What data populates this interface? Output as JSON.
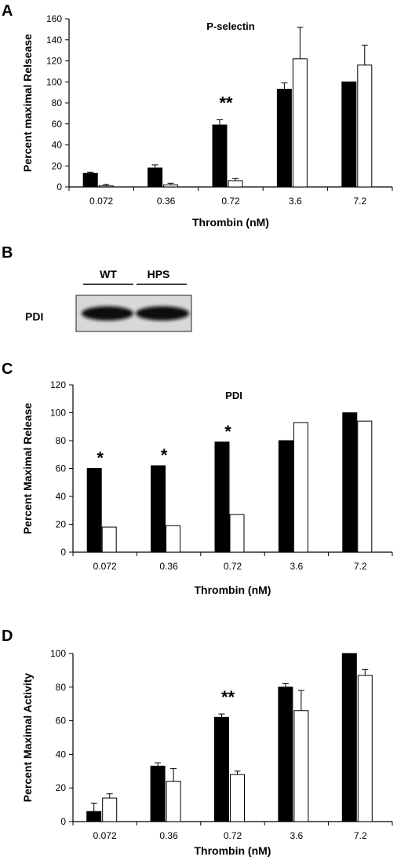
{
  "panels": {
    "a": {
      "letter": "A"
    },
    "b": {
      "letter": "B",
      "blot_label": "PDI",
      "lane_labels": [
        "WT",
        "HPS"
      ]
    },
    "c": {
      "letter": "C"
    },
    "d": {
      "letter": "D"
    }
  },
  "colors": {
    "wt": "#000000",
    "hps": "#ffffff",
    "axis": "#000000"
  },
  "chart_data": [
    {
      "type": "bar",
      "panel": "A",
      "annotation": "P-selectin",
      "categories": [
        "0.072",
        "0.36",
        "0.72",
        "3.6",
        "7.2"
      ],
      "series": [
        {
          "fill": "black",
          "values": [
            13,
            18,
            59,
            93,
            100
          ],
          "errors": [
            1,
            3,
            5,
            6,
            0
          ]
        },
        {
          "fill": "white",
          "values": [
            1,
            2,
            6,
            122,
            116
          ],
          "errors": [
            1.5,
            1.5,
            2,
            30,
            19
          ]
        }
      ],
      "significance": [
        {
          "category_index": 2,
          "label": "**"
        }
      ],
      "xlabel": "Thrombin (nM)",
      "ylabel": "Percent maximal Relsease",
      "ylim": [
        0,
        160
      ],
      "yticks": [
        0,
        20,
        40,
        60,
        80,
        100,
        120,
        140,
        160
      ],
      "ytick_labels": [
        "0",
        "20",
        "40",
        "60",
        "80",
        "100",
        "120",
        "140",
        "160"
      ]
    },
    {
      "type": "bar",
      "panel": "C",
      "annotation": "PDI",
      "categories": [
        "0.072",
        "0.36",
        "0.72",
        "3.6",
        "7.2"
      ],
      "series": [
        {
          "fill": "black",
          "values": [
            60,
            62,
            79,
            80,
            100
          ]
        },
        {
          "fill": "white",
          "values": [
            18,
            19,
            27,
            93,
            94
          ]
        }
      ],
      "significance": [
        {
          "category_index": 0,
          "label": "*"
        },
        {
          "category_index": 1,
          "label": "*"
        },
        {
          "category_index": 2,
          "label": "*"
        }
      ],
      "xlabel": "Thrombin (nM)",
      "ylabel": "Percent Maximal Release",
      "ylim": [
        0,
        120
      ],
      "yticks": [
        0,
        20,
        40,
        60,
        80,
        100,
        120
      ],
      "ytick_labels": [
        "0",
        "20",
        "40",
        "60",
        "80",
        "100",
        "120"
      ]
    },
    {
      "type": "bar",
      "panel": "D",
      "annotation": "",
      "categories": [
        "0.072",
        "0.36",
        "0.72",
        "3.6",
        "7.2"
      ],
      "series": [
        {
          "fill": "black",
          "values": [
            6,
            33,
            62,
            80,
            100
          ],
          "errors": [
            5,
            2,
            2,
            2,
            0
          ]
        },
        {
          "fill": "white",
          "values": [
            14,
            24,
            28,
            66,
            87
          ],
          "errors": [
            2.5,
            7.5,
            2,
            12,
            3.5
          ]
        }
      ],
      "significance": [
        {
          "category_index": 2,
          "label": "**"
        }
      ],
      "xlabel": "Thrombin (nM)",
      "ylabel": "Percent Maximal Activity",
      "ylim": [
        0,
        100
      ],
      "yticks": [
        0,
        20,
        40,
        60,
        80,
        100
      ],
      "ytick_labels": [
        "0",
        "20",
        "40",
        "60",
        "80",
        "100"
      ]
    }
  ]
}
